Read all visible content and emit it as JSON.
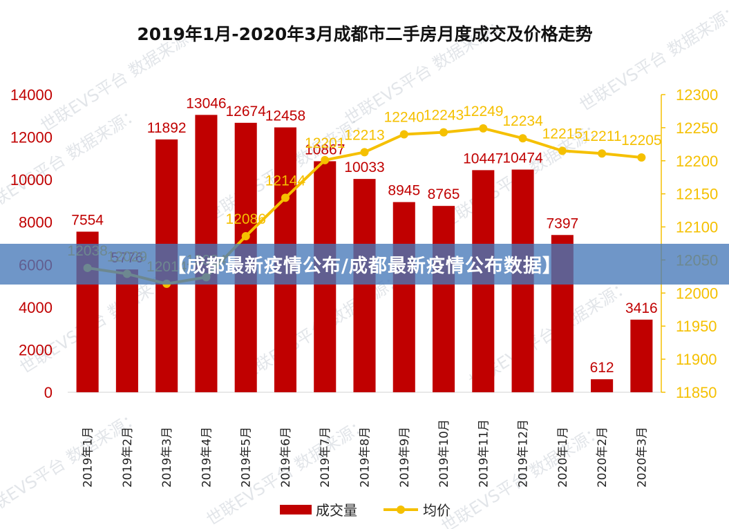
{
  "banner": {
    "text": "【成都最新疫情公布/成都最新疫情公布数据】"
  },
  "watermark": {
    "text": "世联EVS平台  数据来源："
  },
  "colors": {
    "bar": "#c00000",
    "line": "#f5c000",
    "banner": "#4678b9"
  },
  "chart_data": {
    "type": "bar",
    "title": "2019年1月-2020年3月成都市二手房月度成交及价格走势",
    "categories": [
      "2019年1月",
      "2019年2月",
      "2019年3月",
      "2019年4月",
      "2019年5月",
      "2019年6月",
      "2019年7月",
      "2019年8月",
      "2019年9月",
      "2019年10月",
      "2019年11月",
      "2019年12月",
      "2020年1月",
      "2020年2月",
      "2020年3月"
    ],
    "series": [
      {
        "name": "成交量",
        "type": "bar",
        "axis": "left",
        "values": [
          7554,
          5776,
          11892,
          13046,
          12674,
          12458,
          10867,
          10033,
          8945,
          8765,
          10447,
          10474,
          7397,
          612,
          3416
        ]
      },
      {
        "name": "均价",
        "type": "line",
        "axis": "right",
        "values": [
          12038,
          12029,
          12014,
          12024,
          12086,
          12144,
          12201,
          12213,
          12240,
          12243,
          12249,
          12234,
          12215,
          12211,
          12205
        ]
      }
    ],
    "y_left": {
      "min": 0,
      "max": 14000,
      "ticks": [
        0,
        2000,
        4000,
        6000,
        8000,
        10000,
        12000,
        14000
      ]
    },
    "y_right": {
      "min": 11850,
      "max": 12300,
      "ticks": [
        11850,
        11900,
        11950,
        12000,
        12050,
        12100,
        12150,
        12200,
        12250,
        12300
      ]
    },
    "legend": {
      "position": "bottom",
      "entries": [
        "成交量",
        "均价"
      ]
    },
    "grid": false
  }
}
